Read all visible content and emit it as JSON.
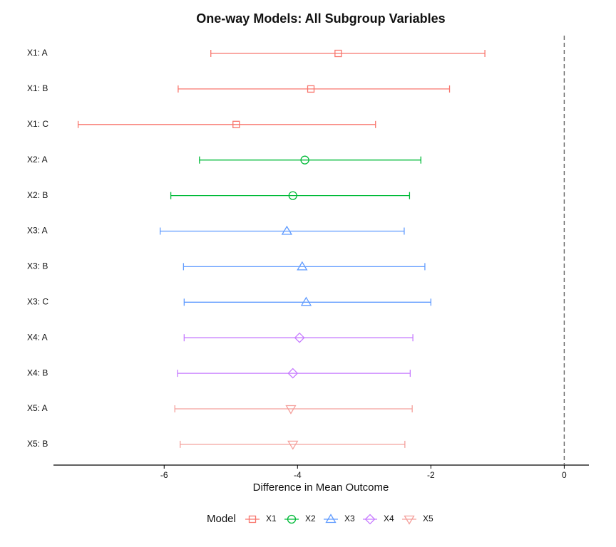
{
  "chart_data": {
    "type": "forest",
    "title": "One-way Models: All Subgroup Variables",
    "x_label": "Difference in Mean Outcome",
    "legend_title": "Model",
    "legend": "bottom",
    "categories": [
      "X1: A",
      "X1: B",
      "X1: C",
      "X2: A",
      "X2: B",
      "X3: A",
      "X3: B",
      "X3: C",
      "X4: A",
      "X4: B",
      "X5: A",
      "X5: B"
    ],
    "xlim": [
      -7.66,
      0.37
    ],
    "xticks": [
      -6,
      -4,
      -2,
      0
    ],
    "reference_line": 0,
    "series": [
      {
        "name": "X1",
        "color": "#f8766d",
        "shape": "square",
        "values": [
          -3.39,
          -3.8,
          -4.92,
          null,
          null,
          null,
          null,
          null,
          null,
          null,
          null,
          null
        ],
        "lower": [
          -5.3,
          -5.79,
          -7.29,
          null,
          null,
          null,
          null,
          null,
          null,
          null,
          null,
          null
        ],
        "upper": [
          -1.19,
          -1.72,
          -2.83,
          null,
          null,
          null,
          null,
          null,
          null,
          null,
          null,
          null
        ]
      },
      {
        "name": "X2",
        "color": "#00ba38",
        "shape": "circle",
        "values": [
          null,
          null,
          null,
          -3.89,
          -4.07,
          null,
          null,
          null,
          null,
          null,
          null,
          null
        ],
        "lower": [
          null,
          null,
          null,
          -5.47,
          -5.9,
          null,
          null,
          null,
          null,
          null,
          null,
          null
        ],
        "upper": [
          null,
          null,
          null,
          -2.15,
          -2.32,
          null,
          null,
          null,
          null,
          null,
          null,
          null
        ]
      },
      {
        "name": "X3",
        "color": "#619cff",
        "shape": "triangle",
        "values": [
          null,
          null,
          null,
          null,
          null,
          -4.16,
          -3.93,
          -3.87,
          null,
          null,
          null,
          null
        ],
        "lower": [
          null,
          null,
          null,
          null,
          null,
          -6.06,
          -5.71,
          -5.7,
          null,
          null,
          null,
          null
        ],
        "upper": [
          null,
          null,
          null,
          null,
          null,
          -2.4,
          -2.09,
          -2.0,
          null,
          null,
          null,
          null
        ]
      },
      {
        "name": "X4",
        "color": "#c77cff",
        "shape": "diamond",
        "values": [
          null,
          null,
          null,
          null,
          null,
          null,
          null,
          null,
          -3.97,
          -4.07,
          null,
          null
        ],
        "lower": [
          null,
          null,
          null,
          null,
          null,
          null,
          null,
          null,
          -5.7,
          -5.8,
          null,
          null
        ],
        "upper": [
          null,
          null,
          null,
          null,
          null,
          null,
          null,
          null,
          -2.27,
          -2.31,
          null,
          null
        ]
      },
      {
        "name": "X5",
        "color": "#f4a09c",
        "shape": "triangle-down",
        "values": [
          null,
          null,
          null,
          null,
          null,
          null,
          null,
          null,
          null,
          null,
          -4.1,
          -4.07
        ],
        "lower": [
          null,
          null,
          null,
          null,
          null,
          null,
          null,
          null,
          null,
          null,
          -5.84,
          -5.76
        ],
        "upper": [
          null,
          null,
          null,
          null,
          null,
          null,
          null,
          null,
          null,
          null,
          -2.28,
          -2.39
        ]
      }
    ]
  }
}
